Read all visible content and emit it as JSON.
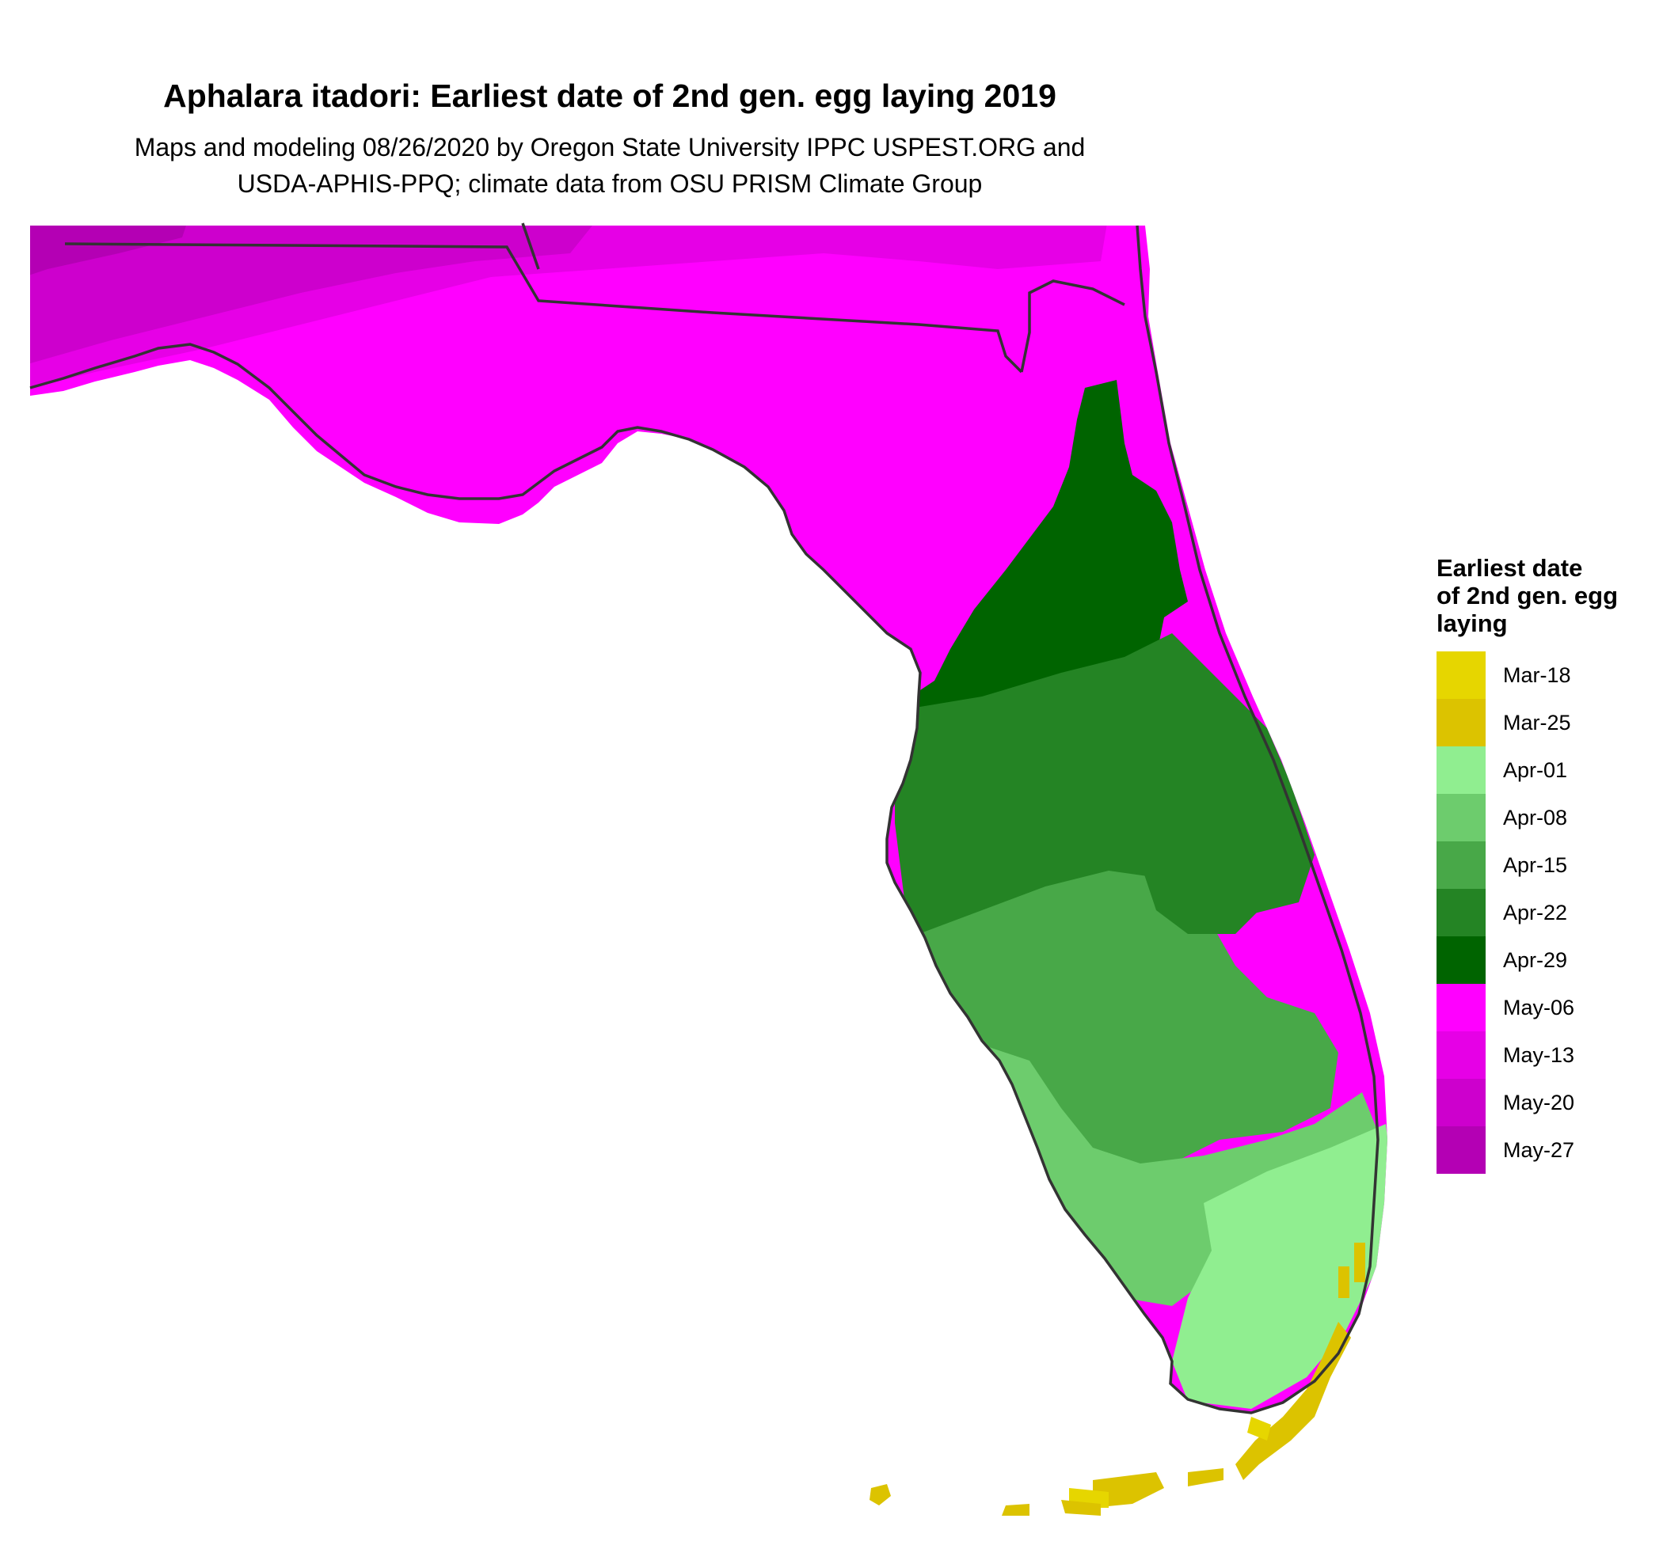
{
  "title": "Aphalara itadori: Earliest date of 2nd gen. egg laying 2019",
  "subtitle_line1": "Maps and modeling 08/26/2020 by Oregon State University IPPC USPEST.ORG and",
  "subtitle_line2": "USDA-APHIS-PPQ; climate data from OSU PRISM Climate Group",
  "legend": {
    "title_lines": [
      "Earliest date",
      "of 2nd gen. egg",
      "laying"
    ],
    "items": [
      {
        "label": "Mar-18",
        "color": "#e6d600"
      },
      {
        "label": "Mar-25",
        "color": "#dcc300"
      },
      {
        "label": "Apr-01",
        "color": "#90ee90"
      },
      {
        "label": "Apr-08",
        "color": "#6dcc6d"
      },
      {
        "label": "Apr-15",
        "color": "#48a848"
      },
      {
        "label": "Apr-22",
        "color": "#248424"
      },
      {
        "label": "Apr-29",
        "color": "#006400"
      },
      {
        "label": "May-06",
        "color": "#ff00ff"
      },
      {
        "label": "May-13",
        "color": "#e600e6"
      },
      {
        "label": "May-20",
        "color": "#cd00cd"
      },
      {
        "label": "May-27",
        "color": "#b400b4"
      }
    ]
  },
  "map": {
    "region": "Florida",
    "zones_described_by_legend_label": [
      {
        "area": "Panhandle & North Florida",
        "labels": [
          "May-06",
          "May-13",
          "May-20",
          "May-27"
        ]
      },
      {
        "area": "North-Central Peninsula",
        "labels": [
          "Apr-29"
        ]
      },
      {
        "area": "Central Peninsula",
        "labels": [
          "Apr-22",
          "Apr-15"
        ]
      },
      {
        "area": "South Florida",
        "labels": [
          "Apr-08",
          "Apr-01"
        ]
      },
      {
        "area": "Florida Keys",
        "labels": [
          "Mar-25",
          "Mar-18"
        ]
      }
    ]
  }
}
